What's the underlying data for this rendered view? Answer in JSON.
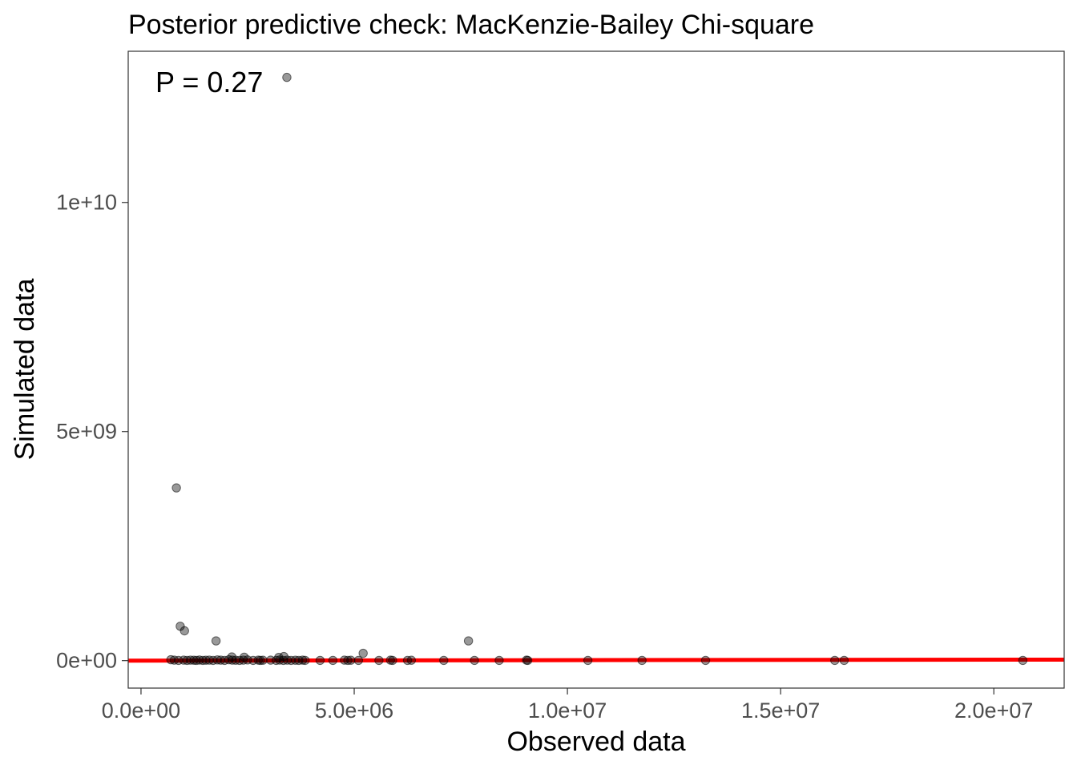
{
  "chart_data": {
    "type": "scatter",
    "title": "Posterior predictive check: MacKenzie-Bailey Chi-square",
    "xlabel": "Observed data",
    "ylabel": "Simulated data",
    "annotation": "P = 0.27",
    "xlim": [
      -300000,
      21650000
    ],
    "ylim": [
      -600000000,
      13300000000
    ],
    "x_ticks": [
      {
        "value": 0,
        "label": "0.0e+00"
      },
      {
        "value": 5000000,
        "label": "5.0e+06"
      },
      {
        "value": 10000000,
        "label": "1.0e+07"
      },
      {
        "value": 15000000,
        "label": "1.5e+07"
      },
      {
        "value": 20000000,
        "label": "2.0e+07"
      }
    ],
    "y_ticks": [
      {
        "value": 0,
        "label": "0e+00"
      },
      {
        "value": 5000000000,
        "label": "5e+09"
      },
      {
        "value": 10000000000,
        "label": "1e+10"
      }
    ],
    "grid": false,
    "reference_line": {
      "slope": 1,
      "intercept": 0,
      "color": "#ff0000"
    },
    "point_color": "#000000",
    "point_opacity": 0.4,
    "points": {
      "x": [
        3420000,
        830000,
        920000,
        1020000,
        1760000,
        7680000,
        5210000,
        700000,
        780000,
        880000,
        1000000,
        1080000,
        1160000,
        1240000,
        1300000,
        1370000,
        1450000,
        1520000,
        1600000,
        1690000,
        1790000,
        1870000,
        1960000,
        2060000,
        2140000,
        2220000,
        2310000,
        2400000,
        2500000,
        2630000,
        2750000,
        2800000,
        2860000,
        3040000,
        3170000,
        3250000,
        3340000,
        3430000,
        3520000,
        3620000,
        3700000,
        3790000,
        3850000,
        4200000,
        4500000,
        4770000,
        4850000,
        4920000,
        5100000,
        5580000,
        5850000,
        5900000,
        6250000,
        6340000,
        7100000,
        7820000,
        8400000,
        9040000,
        9070000,
        10480000,
        11750000,
        13240000,
        16270000,
        16490000,
        20680000,
        2130000,
        2420000,
        3230000,
        3350000
      ],
      "y": [
        12730000000,
        3770000000,
        750000000,
        650000000,
        430000000,
        430000000,
        160000000,
        20000000,
        10000000,
        5000000,
        10000000,
        5000000,
        10000000,
        8000000,
        5000000,
        12000000,
        5000000,
        8000000,
        10000000,
        5000000,
        15000000,
        10000000,
        5000000,
        20000000,
        10000000,
        8000000,
        5000000,
        10000000,
        15000000,
        5000000,
        10000000,
        5000000,
        8000000,
        10000000,
        5000000,
        12000000,
        5000000,
        10000000,
        5000000,
        8000000,
        5000000,
        10000000,
        5000000,
        5000000,
        5000000,
        10000000,
        5000000,
        8000000,
        5000000,
        5000000,
        10000000,
        5000000,
        5000000,
        8000000,
        5000000,
        5000000,
        5000000,
        10000000,
        5000000,
        5000000,
        5000000,
        5000000,
        5000000,
        5000000,
        5000000,
        80000000,
        75000000,
        70000000,
        90000000
      ]
    }
  }
}
